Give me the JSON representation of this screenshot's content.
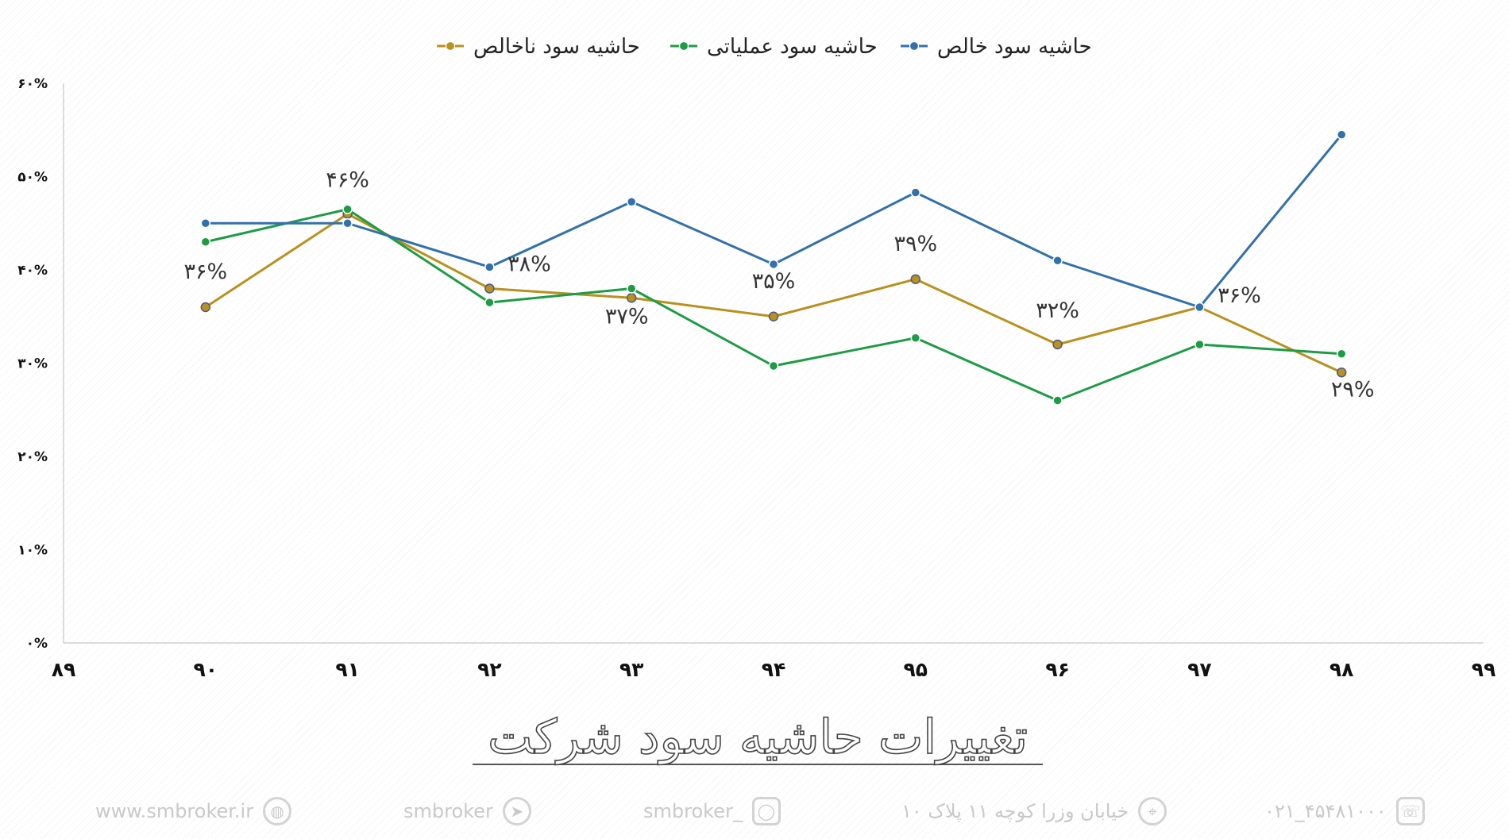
{
  "chart_data": {
    "type": "line",
    "title": "تغییرات حاشیه سود شرکت",
    "x": [
      "۹۰",
      "۹۱",
      "۹۲",
      "۹۳",
      "۹۴",
      "۹۵",
      "۹۶",
      "۹۷",
      "۹۸"
    ],
    "x_ticks": [
      "۸۹",
      "۹۰",
      "۹۱",
      "۹۲",
      "۹۳",
      "۹۴",
      "۹۵",
      "۹۶",
      "۹۷",
      "۹۸",
      "۹۹"
    ],
    "x_range": [
      89,
      99
    ],
    "ylim": [
      0,
      60
    ],
    "y_ticks": [
      {
        "value": 0,
        "label": "۰%"
      },
      {
        "value": 10,
        "label": "۱۰%"
      },
      {
        "value": 20,
        "label": "۲۰%"
      },
      {
        "value": 30,
        "label": "۳۰%"
      },
      {
        "value": 40,
        "label": "۴۰%"
      },
      {
        "value": 50,
        "label": "۵۰%"
      },
      {
        "value": 60,
        "label": "۶۰%"
      }
    ],
    "legend_position": "top",
    "grid": false,
    "series": [
      {
        "name": "حاشیه سود ناخالص",
        "color": "#b8911f",
        "values": [
          36,
          46,
          38,
          37,
          35,
          39,
          32,
          36,
          29
        ]
      },
      {
        "name": "حاشیه سود عملیاتی",
        "color": "#1e9b45",
        "values": [
          43,
          46.5,
          36.5,
          38,
          29.7,
          32.7,
          26,
          32,
          31
        ]
      },
      {
        "name": "حاشیه سود خالص",
        "color": "#3470ab",
        "values": [
          45,
          45,
          40.3,
          47.3,
          40.6,
          48.3,
          41,
          36,
          54.5
        ]
      }
    ],
    "data_labels": [
      "۳۶%",
      "۴۶%",
      "۳۸%",
      "۳۷%",
      "۳۵%",
      "۳۹%",
      "۳۲%",
      "۳۶%",
      "۲۹%"
    ]
  },
  "footer": {
    "website": "www.smbroker.ir",
    "telegram": "smbroker",
    "instagram": "smbroker_",
    "address": "خیابان وزرا کوچه ۱۱ پلاک ۱۰",
    "phone": "۰۲۱_۴۵۴۸۱۰۰۰"
  }
}
